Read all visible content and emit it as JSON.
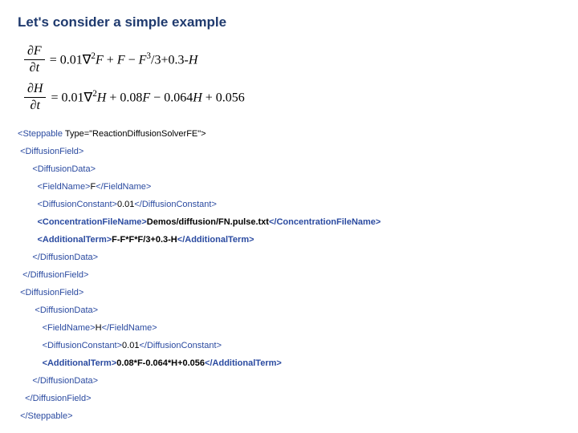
{
  "title": {
    "text": "Let's consider a simple example",
    "color": "#1f3a6e",
    "fontsize": 17
  },
  "equations": {
    "font_family": "Times New Roman, serif",
    "fontsize": 16,
    "color": "#000000",
    "eq1": {
      "lhs_num": "∂F",
      "lhs_den": "∂t",
      "rhs": " = 0.01∇²F + F − F³/3+0.3-H"
    },
    "eq2": {
      "lhs_num": "∂H",
      "lhs_den": "∂t",
      "rhs": " = 0.01∇²H + 0.08F − 0.064H + 0.056"
    }
  },
  "xml": {
    "tag_color": "#2a4aa0",
    "text_color": "#000000",
    "fontsize": 11,
    "indent": "    ",
    "steppable_open_pre": "<",
    "steppable_name": "Steppable",
    "steppable_attr": " Type=\"ReactionDiffusionSolverFE\">",
    "diffusionfield_open": "<DiffusionField>",
    "diffusiondata_open": "<DiffusionData>",
    "fieldname_open": "<FieldName>",
    "fieldname_close": "</FieldName>",
    "fieldname_F": "F",
    "fieldname_H": "H",
    "diffconst_open": "<DiffusionConstant>",
    "diffconst_close": "</DiffusionConstant>",
    "diffconst_val": "0.01",
    "concfile_open": "<ConcentrationFileName>",
    "concfile_close": "</ConcentrationFileName>",
    "concfile_val": "Demos/diffusion/FN.pulse.txt",
    "addterm_open": "<AdditionalTerm>",
    "addterm_close": "</AdditionalTerm>",
    "addterm_F": "F-F*F*F/3+0.3-H",
    "addterm_H": "0.08*F-0.064*H+0.056",
    "diffusiondata_close": "</DiffusionData>",
    "diffusionfield_close": "</DiffusionField>",
    "steppable_close": "</Steppable>"
  }
}
